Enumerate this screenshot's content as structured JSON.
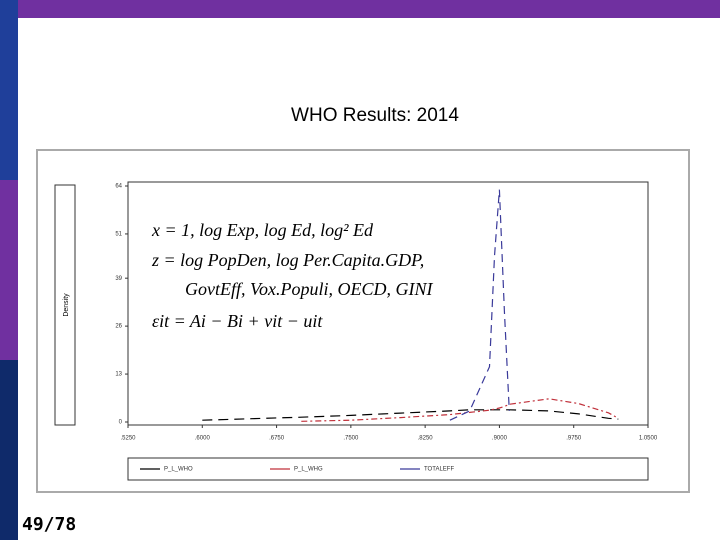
{
  "slide": {
    "title": "WHO Results: 2014",
    "page_number": "49/78"
  },
  "chart_data": {
    "type": "line",
    "ylabel": "Density",
    "annotations": [
      "x = 1, log Exp, log Ed, log² Ed",
      "z = log PopDen, log Per.Capita.GDP,",
      "GovtEff, Vox.Populi, OECD, GINI",
      "εit = Ai − Bi   +   vit − uit"
    ],
    "x": [
      0.6,
      0.65,
      0.7,
      0.75,
      0.8,
      0.85,
      0.87,
      0.89,
      0.895,
      0.9,
      0.905,
      0.91,
      0.95,
      0.98,
      1.01,
      1.02
    ],
    "series": [
      {
        "name": "P_L_WHO",
        "color": "#000000",
        "values": [
          0.5,
          0.9,
          1.3,
          1.8,
          2.4,
          3.0,
          3.3,
          3.3,
          3.3,
          3.3,
          3.3,
          3.3,
          3.0,
          2.2,
          1.0,
          0.8
        ]
      },
      {
        "name": "P_L_WHG",
        "color": "#c0303a",
        "values": [
          null,
          null,
          0.2,
          0.5,
          1.2,
          2.0,
          2.6,
          3.2,
          3.5,
          3.8,
          4.2,
          4.8,
          6.3,
          5.0,
          2.5,
          1.0
        ]
      },
      {
        "name": "TOTALEFF",
        "color": "#3a3a9a",
        "values": [
          null,
          null,
          null,
          null,
          null,
          0.5,
          3,
          15,
          45,
          63,
          30,
          3,
          null,
          null,
          null,
          null
        ]
      }
    ],
    "xlim": [
      0.525,
      1.05
    ],
    "xticks": [
      {
        "value": 0.525,
        "label": ".5250"
      },
      {
        "value": 0.6,
        "label": ".6000"
      },
      {
        "value": 0.675,
        "label": ".6750"
      },
      {
        "value": 0.75,
        "label": ".7500"
      },
      {
        "value": 0.825,
        "label": ".8250"
      },
      {
        "value": 0.9,
        "label": ".9000"
      },
      {
        "value": 0.975,
        "label": ".9750"
      },
      {
        "value": 1.05,
        "label": "1.0500"
      }
    ],
    "ylim": [
      0,
      64
    ],
    "yticks": [
      0,
      13,
      26,
      39,
      51,
      64
    ]
  }
}
